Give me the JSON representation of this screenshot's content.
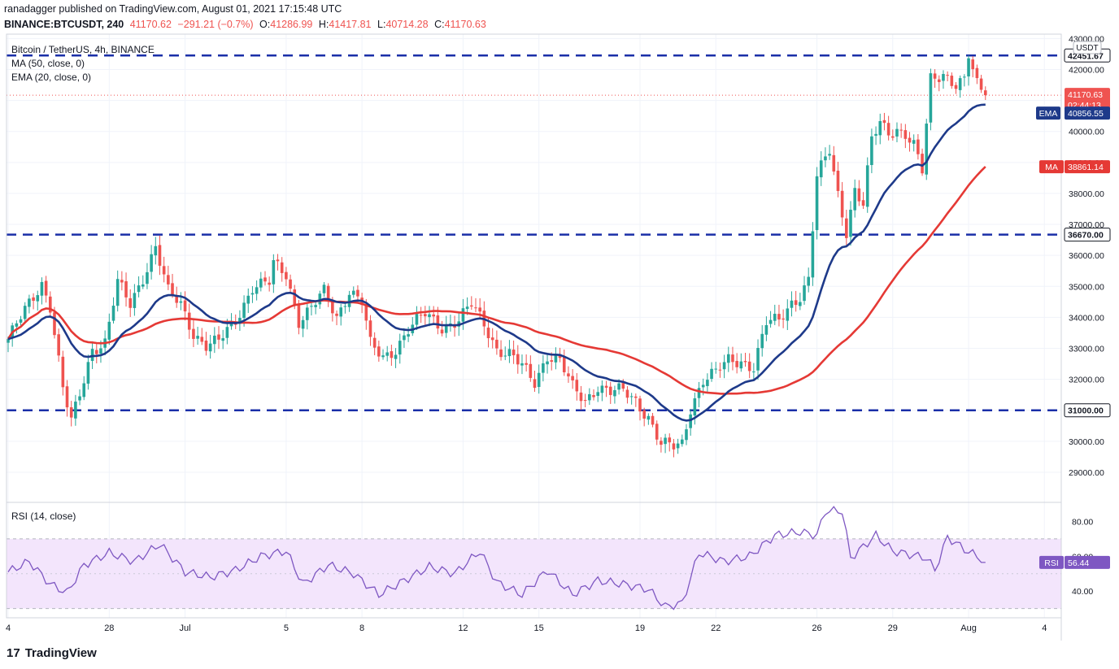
{
  "header": {
    "publisher_line": "ranadagger published on TradingView.com, August 01, 2021 17:15:48 UTC",
    "symbol": "BINANCE:BTCUSDT, 240",
    "last": "41170.62",
    "change": "−291.21 (−0.7%)",
    "o_label": "O:",
    "o": "41286.99",
    "h_label": "H:",
    "h": "41417.81",
    "l_label": "L:",
    "l": "40714.28",
    "c_label": "C:",
    "c": "41170.63"
  },
  "legend": {
    "title": "Bitcoin / TetherUS, 4h, BINANCE",
    "ma": "MA (50, close, 0)",
    "ema": "EMA (20, close, 0)"
  },
  "rsi_legend": "RSI (14, close)",
  "currency_label": "USDT",
  "footer": {
    "brand": "TradingView",
    "logo_mark": "17"
  },
  "colors": {
    "up": "#26a69a",
    "down": "#ef5350",
    "ema": "#1e3a8a",
    "ma": "#e53935",
    "level": "#1a2fa8",
    "rsi_line": "#7e57c2",
    "rsi_band": "#f3e5fc"
  },
  "chart_data": {
    "type": "candlestick",
    "ylim": [
      28500,
      42800
    ],
    "rsi_ylim": [
      27,
      90
    ],
    "x_ticks": [
      {
        "label": "4",
        "i": 0
      },
      {
        "label": "28",
        "i": 24
      },
      {
        "label": "Jul",
        "i": 42
      },
      {
        "label": "5",
        "i": 66
      },
      {
        "label": "8",
        "i": 84
      },
      {
        "label": "12",
        "i": 108
      },
      {
        "label": "15",
        "i": 126
      },
      {
        "label": "19",
        "i": 150
      },
      {
        "label": "22",
        "i": 168
      },
      {
        "label": "26",
        "i": 192
      },
      {
        "label": "29",
        "i": 210
      },
      {
        "label": "Aug",
        "i": 228
      },
      {
        "label": "4",
        "i": 246
      }
    ],
    "y_ticks": [
      29000,
      30000,
      31000,
      32000,
      33000,
      34000,
      35000,
      36000,
      37000,
      38000,
      39000,
      40000,
      41000,
      42000,
      43000
    ],
    "rsi_ticks": [
      40,
      60,
      80
    ],
    "rsi_band": [
      30,
      70
    ],
    "levels": [
      {
        "value": 42451.67,
        "label": "42451.67"
      },
      {
        "value": 36670.0,
        "label": "36670.00"
      },
      {
        "value": 31000.0,
        "label": "31000.00"
      }
    ],
    "price_tags": {
      "last": {
        "value": 41170.63,
        "label": "41170.63",
        "countdown": "02:44:13"
      },
      "ema": {
        "value": 40856.55,
        "label": "40856.55",
        "name": "EMA"
      },
      "ma": {
        "value": 38861.14,
        "label": "38861.14",
        "name": "MA"
      }
    },
    "rsi_tag": {
      "value": 56.44,
      "label": "56.44",
      "name": "RSI"
    },
    "anchors": [
      [
        0,
        33300
      ],
      [
        4,
        34200
      ],
      [
        8,
        35100
      ],
      [
        10,
        34400
      ],
      [
        13,
        31700
      ],
      [
        15,
        30600
      ],
      [
        17,
        31500
      ],
      [
        20,
        33000
      ],
      [
        23,
        33200
      ],
      [
        26,
        35100
      ],
      [
        29,
        34400
      ],
      [
        32,
        35300
      ],
      [
        35,
        36300
      ],
      [
        38,
        34800
      ],
      [
        41,
        34400
      ],
      [
        44,
        33500
      ],
      [
        47,
        33100
      ],
      [
        50,
        33200
      ],
      [
        54,
        33900
      ],
      [
        58,
        35000
      ],
      [
        62,
        35100
      ],
      [
        63,
        35700
      ],
      [
        66,
        35400
      ],
      [
        69,
        33900
      ],
      [
        72,
        34300
      ],
      [
        75,
        34800
      ],
      [
        78,
        34000
      ],
      [
        81,
        34900
      ],
      [
        84,
        34500
      ],
      [
        86,
        33100
      ],
      [
        89,
        32700
      ],
      [
        92,
        33000
      ],
      [
        95,
        33600
      ],
      [
        99,
        34100
      ],
      [
        103,
        33700
      ],
      [
        107,
        33900
      ],
      [
        110,
        34400
      ],
      [
        113,
        33800
      ],
      [
        116,
        33000
      ],
      [
        119,
        32800
      ],
      [
        122,
        32400
      ],
      [
        125,
        31900
      ],
      [
        128,
        32800
      ],
      [
        131,
        32600
      ],
      [
        134,
        31700
      ],
      [
        137,
        31300
      ],
      [
        140,
        31800
      ],
      [
        143,
        31600
      ],
      [
        146,
        31600
      ],
      [
        149,
        31300
      ],
      [
        152,
        30800
      ],
      [
        155,
        29900
      ],
      [
        158,
        29800
      ],
      [
        160,
        29900
      ],
      [
        162,
        31100
      ],
      [
        165,
        32000
      ],
      [
        168,
        32200
      ],
      [
        171,
        32600
      ],
      [
        174,
        32600
      ],
      [
        177,
        32400
      ],
      [
        180,
        33800
      ],
      [
        183,
        33900
      ],
      [
        186,
        34500
      ],
      [
        188,
        34700
      ],
      [
        190,
        35200
      ],
      [
        192,
        38500
      ],
      [
        195,
        39400
      ],
      [
        197,
        38000
      ],
      [
        199,
        36800
      ],
      [
        201,
        38100
      ],
      [
        203,
        37600
      ],
      [
        205,
        39700
      ],
      [
        207,
        40300
      ],
      [
        209,
        40000
      ],
      [
        211,
        40100
      ],
      [
        213,
        39900
      ],
      [
        215,
        39500
      ],
      [
        217,
        38700
      ],
      [
        219,
        41700
      ],
      [
        222,
        41900
      ],
      [
        225,
        41500
      ],
      [
        227,
        41600
      ],
      [
        228,
        42400
      ],
      [
        230,
        41500
      ],
      [
        232,
        41170
      ]
    ],
    "rsi_anchors": [
      [
        0,
        51
      ],
      [
        5,
        57
      ],
      [
        10,
        44
      ],
      [
        14,
        39
      ],
      [
        18,
        55
      ],
      [
        24,
        62
      ],
      [
        30,
        57
      ],
      [
        36,
        67
      ],
      [
        42,
        51
      ],
      [
        48,
        48
      ],
      [
        54,
        52
      ],
      [
        60,
        60
      ],
      [
        66,
        63
      ],
      [
        70,
        44
      ],
      [
        76,
        55
      ],
      [
        82,
        50
      ],
      [
        88,
        38
      ],
      [
        94,
        46
      ],
      [
        100,
        54
      ],
      [
        106,
        50
      ],
      [
        112,
        63
      ],
      [
        116,
        45
      ],
      [
        122,
        38
      ],
      [
        128,
        52
      ],
      [
        134,
        38
      ],
      [
        140,
        46
      ],
      [
        146,
        44
      ],
      [
        152,
        41
      ],
      [
        156,
        31
      ],
      [
        160,
        33
      ],
      [
        164,
        62
      ],
      [
        170,
        57
      ],
      [
        176,
        60
      ],
      [
        182,
        72
      ],
      [
        188,
        74
      ],
      [
        192,
        72
      ],
      [
        194,
        86
      ],
      [
        198,
        86
      ],
      [
        200,
        59
      ],
      [
        206,
        72
      ],
      [
        210,
        63
      ],
      [
        214,
        61
      ],
      [
        218,
        59
      ],
      [
        220,
        52
      ],
      [
        223,
        71
      ],
      [
        227,
        64
      ],
      [
        230,
        60
      ],
      [
        232,
        57
      ]
    ]
  }
}
